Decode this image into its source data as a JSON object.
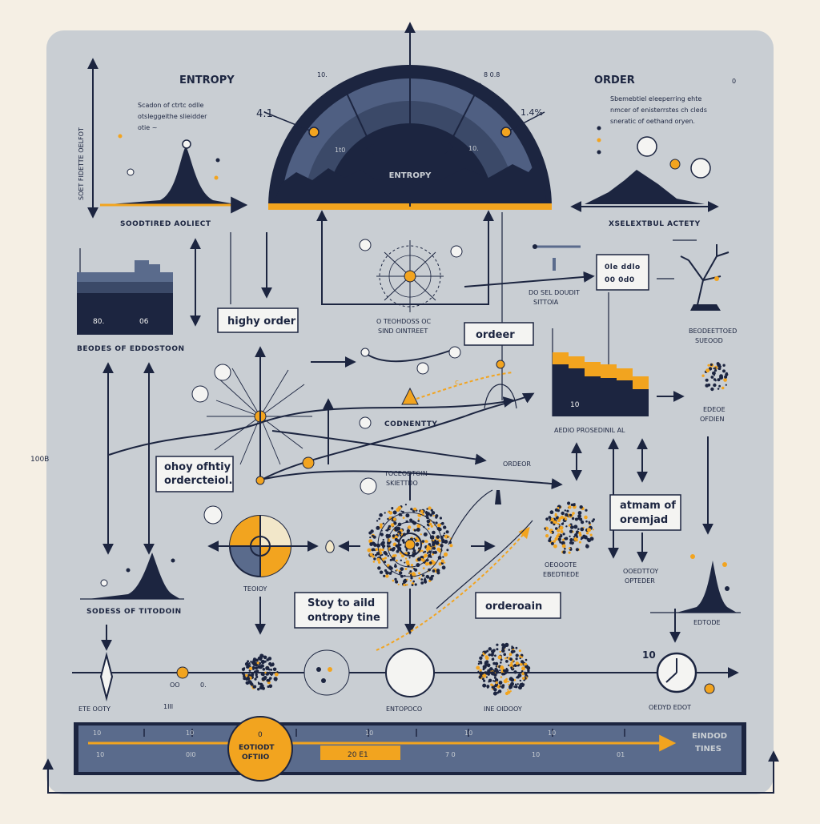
{
  "colors": {
    "background": "#f5efe4",
    "panel": "#c9ced3",
    "navy": "#1c2540",
    "slate": "#5a6b8c",
    "gold": "#f2a41f"
  },
  "top": {
    "entropy_heading": "ENTROPY",
    "order_heading": "ORDER",
    "order_corner_num": "0",
    "gauge_label": "ENTROPY",
    "gauge_ticks": [
      "10.",
      "4:1",
      "1t0",
      "10.",
      "8 0.8",
      "1.4%",
      "1t0"
    ],
    "left_note": [
      "Scadon of ctrtc odlle",
      "otsleggeithe slieidder",
      "otie ~"
    ],
    "right_note": [
      "Sbemebtiel eleeperring ehte",
      "nmcer of enisterrstes ch cleds",
      "sneratic of oethand oryen."
    ],
    "left_axis_caption": "SOODTIRED AOLIECT",
    "right_axis_caption": "XSELEXTBUL ACTETY",
    "left_vertical_text": "SOET FIDETTE OELFOT"
  },
  "left": {
    "bars_numbers": [
      "80.",
      "06"
    ],
    "bars_caption": "BEODES OF EDDOSTOON",
    "box_highly_order": "highy order",
    "box_ordered_small": [
      "ohoy ofhtiy",
      "ordercteiol."
    ],
    "peak_caption": "SODESS OF TITODOIN",
    "side_tag": "100B"
  },
  "center": {
    "sun_caption": [
      "O TEOHDOSS OC",
      "SIND OINTREET"
    ],
    "sun_side_note": [
      "DO SEL DOUDIT",
      "SITTOIA"
    ],
    "box_ordeer": "ordeer",
    "connectivity_label": "CODNENTTY",
    "mid_label": [
      "TOCEODTOIN",
      "SKIETTDO"
    ],
    "pie_caption": "TEOIOY",
    "box_entropy_line": [
      "Stoy to aild",
      "ontropy tine"
    ],
    "box_orderoain": "orderoain",
    "cluster_caption": [
      "OEOOOTE",
      "EBEDTIEDE"
    ],
    "ordeor_label": "ORDEOR",
    "ordeor_num": "c"
  },
  "right": {
    "box_digits": [
      "0le ddlo",
      "00 0d0"
    ],
    "tree_caption": [
      "BEODEETTOED",
      "SUEOOD"
    ],
    "bars_caption": "AEDIO PROSEDINIL AL",
    "bars_number": "10",
    "small_cluster_caption": [
      "EDEOE",
      "OFDIEN"
    ],
    "box_atmosphere": [
      "atmam of",
      "oremjad"
    ],
    "cluster2_caption": [
      "OOEDTTOY",
      "OPTEDER"
    ],
    "peak_caption": "EDTODE",
    "clock_label": "10",
    "clock_caption": "OEDYD EDOT"
  },
  "bottom_row": {
    "labels": [
      "ETE OOTY",
      "1III",
      "ENTOPOCO",
      "INE OIDOOY"
    ],
    "nums": [
      "OO",
      "0."
    ]
  },
  "timeline": {
    "tick_labels": [
      "10",
      "10",
      "10",
      "10",
      "10",
      "10"
    ],
    "sub_labels": [
      "10",
      "10",
      "0l0",
      "0",
      "10",
      "7 0",
      "10",
      "01"
    ],
    "badge_top": "0",
    "badge_text": [
      "EOTIODT",
      "OFTIIO"
    ],
    "highlight_text": "20 E1",
    "end_label": [
      "EINDOD",
      "TINES"
    ]
  }
}
